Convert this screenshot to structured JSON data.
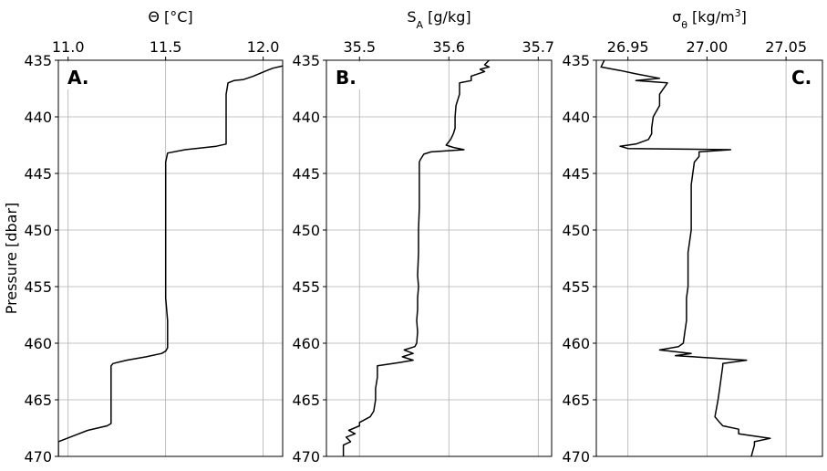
{
  "figure": {
    "ylabel": "Pressure [dbar]"
  },
  "chart_data": [
    {
      "type": "line",
      "panel_label": "A.",
      "xlabel_html": "Θ [°C]",
      "ylabel": "Pressure [dbar]",
      "xlim": [
        10.95,
        12.1
      ],
      "ylim": [
        470,
        435
      ],
      "x_ticks": [
        11.0,
        11.5,
        12.0
      ],
      "x_tick_labels": [
        "11.0",
        "11.5",
        "12.0"
      ],
      "y_ticks": [
        435,
        440,
        445,
        450,
        455,
        460,
        465,
        470
      ],
      "y_tick_labels": [
        "435",
        "440",
        "445",
        "450",
        "455",
        "460",
        "465",
        "470"
      ],
      "grid": true,
      "series": [
        {
          "x": [
            12.1,
            12.05,
            12.02,
            11.95,
            11.9,
            11.85,
            11.82,
            11.81,
            11.81,
            11.81,
            11.81,
            11.81,
            11.76,
            11.6,
            11.51,
            11.5,
            11.5,
            11.5,
            11.5,
            11.5,
            11.51,
            11.51,
            11.51,
            11.5,
            11.48,
            11.4,
            11.3,
            11.23,
            11.22,
            11.22,
            11.22,
            11.22,
            11.22,
            11.2,
            11.1,
            11.04,
            10.98,
            10.95,
            10.95
          ],
          "y": [
            435.5,
            435.7,
            435.9,
            436.4,
            436.7,
            436.8,
            437.0,
            438.0,
            440.0,
            441.0,
            442.0,
            442.4,
            442.6,
            442.9,
            443.2,
            444.0,
            447.0,
            450.0,
            453.0,
            456.0,
            458.0,
            460.0,
            460.4,
            460.7,
            460.9,
            461.2,
            461.5,
            461.8,
            462.0,
            463.0,
            465.0,
            466.9,
            467.1,
            467.3,
            467.7,
            468.1,
            468.5,
            468.7,
            470.0
          ]
        }
      ]
    },
    {
      "type": "line",
      "panel_label": "B.",
      "xlabel_html": "S<tspan baseline-shift=\"sub\" font-size=\"11\">A</tspan> [g/kg]",
      "ylim": [
        470,
        435
      ],
      "xlim": [
        35.463,
        35.715
      ],
      "x_ticks": [
        35.5,
        35.6,
        35.7
      ],
      "x_tick_labels": [
        "35.5",
        "35.6",
        "35.7"
      ],
      "y_ticks": [
        435,
        440,
        445,
        450,
        455,
        460,
        465,
        470
      ],
      "y_tick_labels": [
        "435",
        "440",
        "445",
        "450",
        "455",
        "460",
        "465",
        "470"
      ],
      "grid": true,
      "series": [
        {
          "x": [
            35.645,
            35.64,
            35.645,
            35.635,
            35.64,
            35.625,
            35.625,
            35.612,
            35.612,
            35.608,
            35.607,
            35.607,
            35.605,
            35.602,
            35.597,
            35.605,
            35.617,
            35.58,
            35.572,
            35.568,
            35.567,
            35.567,
            35.567,
            35.566,
            35.566,
            35.565,
            35.566,
            35.565,
            35.565,
            35.564,
            35.565,
            35.564,
            35.562,
            35.55,
            35.56,
            35.548,
            35.56,
            35.545,
            35.52,
            35.52,
            35.518,
            35.518,
            35.516,
            35.512,
            35.5,
            35.5,
            35.488,
            35.495,
            35.485,
            35.49,
            35.482,
            35.482
          ],
          "y": [
            435.0,
            435.4,
            435.6,
            435.8,
            436.0,
            436.4,
            436.8,
            437.0,
            438.0,
            439.0,
            440.0,
            441.0,
            441.5,
            442.0,
            442.5,
            442.7,
            442.9,
            443.1,
            443.3,
            443.8,
            444.0,
            446.0,
            448.0,
            450.0,
            452.0,
            454.0,
            455.0,
            456.0,
            457.0,
            458.0,
            459.0,
            460.0,
            460.3,
            460.6,
            460.9,
            461.2,
            461.5,
            461.7,
            462.0,
            463.0,
            464.0,
            465.0,
            466.0,
            466.5,
            467.0,
            467.3,
            467.7,
            468.0,
            468.3,
            468.7,
            469.0,
            470.0
          ]
        }
      ]
    },
    {
      "type": "line",
      "panel_label": "C.",
      "xlabel_html": "σ<tspan baseline-shift=\"sub\" font-size=\"11\">θ</tspan> [kg/m<tspan baseline-shift=\"super\" font-size=\"11\">3</tspan>]",
      "ylim": [
        470,
        435
      ],
      "xlim": [
        26.93,
        27.073
      ],
      "x_ticks": [
        26.95,
        27.0,
        27.05
      ],
      "x_tick_labels": [
        "26.95",
        "27.00",
        "27.05"
      ],
      "y_ticks": [
        435,
        440,
        445,
        450,
        455,
        460,
        465,
        470
      ],
      "y_tick_labels": [
        "435",
        "440",
        "445",
        "450",
        "455",
        "460",
        "465",
        "470"
      ],
      "grid": true,
      "series": [
        {
          "x": [
            26.935,
            26.933,
            26.945,
            26.955,
            26.97,
            26.955,
            26.975,
            26.97,
            26.97,
            26.966,
            26.965,
            26.965,
            26.963,
            26.955,
            26.945,
            26.95,
            27.015,
            26.995,
            26.995,
            26.992,
            26.99,
            26.99,
            26.99,
            26.988,
            26.988,
            26.988,
            26.987,
            26.987,
            26.987,
            26.986,
            26.985,
            26.982,
            26.97,
            26.99,
            26.98,
            27.025,
            27.01,
            27.01,
            27.009,
            27.008,
            27.007,
            27.005,
            27.008,
            27.01,
            27.02,
            27.02,
            27.04,
            27.03,
            27.03,
            27.028
          ],
          "y": [
            435.0,
            435.6,
            435.9,
            436.2,
            436.6,
            436.8,
            437.0,
            438.0,
            439.0,
            440.0,
            441.0,
            441.5,
            442.0,
            442.4,
            442.6,
            442.8,
            442.9,
            443.1,
            443.5,
            444.0,
            446.0,
            448.0,
            450.0,
            452.0,
            453.0,
            455.0,
            456.0,
            457.0,
            458.0,
            459.0,
            460.0,
            460.3,
            460.6,
            460.9,
            461.1,
            461.5,
            461.8,
            462.0,
            463.0,
            464.0,
            465.0,
            466.5,
            467.0,
            467.3,
            467.6,
            468.0,
            468.4,
            468.7,
            469.0,
            470.0
          ]
        }
      ]
    }
  ]
}
